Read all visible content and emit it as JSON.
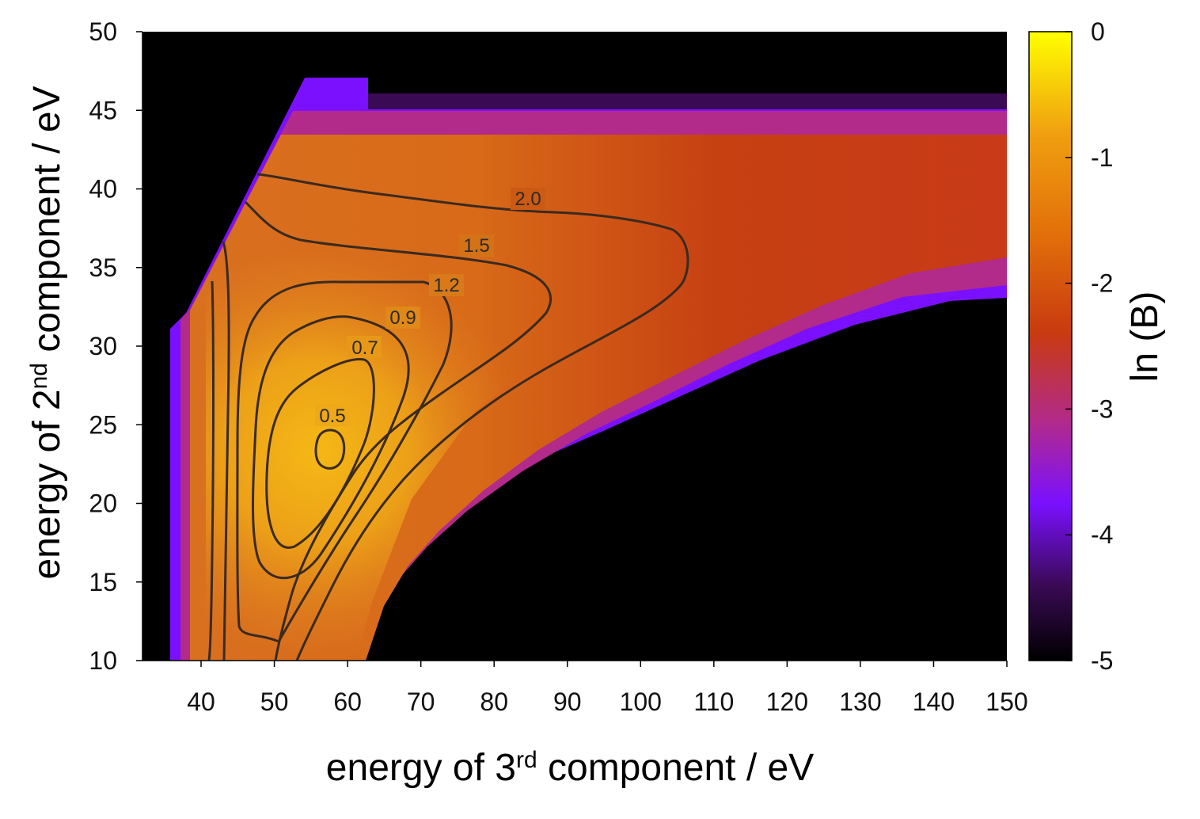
{
  "chart_data": {
    "type": "heatmap",
    "title": "",
    "xlabel": {
      "prefix": "energy of 3",
      "sup": "rd",
      "suffix": " component / eV"
    },
    "ylabel": {
      "prefix": "energy of 2",
      "sup": "nd",
      "suffix": "  component / eV"
    },
    "xlim": [
      32,
      150
    ],
    "ylim": [
      10,
      50
    ],
    "x_ticks": [
      "40",
      "50",
      "60",
      "70",
      "80",
      "90",
      "100",
      "110",
      "120",
      "130",
      "140",
      "150"
    ],
    "y_ticks": [
      "10",
      "15",
      "20",
      "25",
      "30",
      "35",
      "40",
      "45",
      "50"
    ],
    "colorbar": {
      "label": "ln (B)",
      "range": [
        -5,
        0
      ],
      "ticks": [
        "0",
        "-1",
        "-2",
        "-3",
        "-4",
        "-5"
      ],
      "colormap": [
        "#000000",
        "#3a0a55",
        "#7a10ff",
        "#b22a8a",
        "#c83a10",
        "#e2700a",
        "#f0a010",
        "#ffff00"
      ]
    },
    "background": "#000000",
    "contours": [
      {
        "label": "0.5"
      },
      {
        "label": "0.7"
      },
      {
        "label": "0.9"
      },
      {
        "label": "1.2"
      },
      {
        "label": "1.5"
      },
      {
        "label": "2.0"
      }
    ],
    "grid": false
  }
}
